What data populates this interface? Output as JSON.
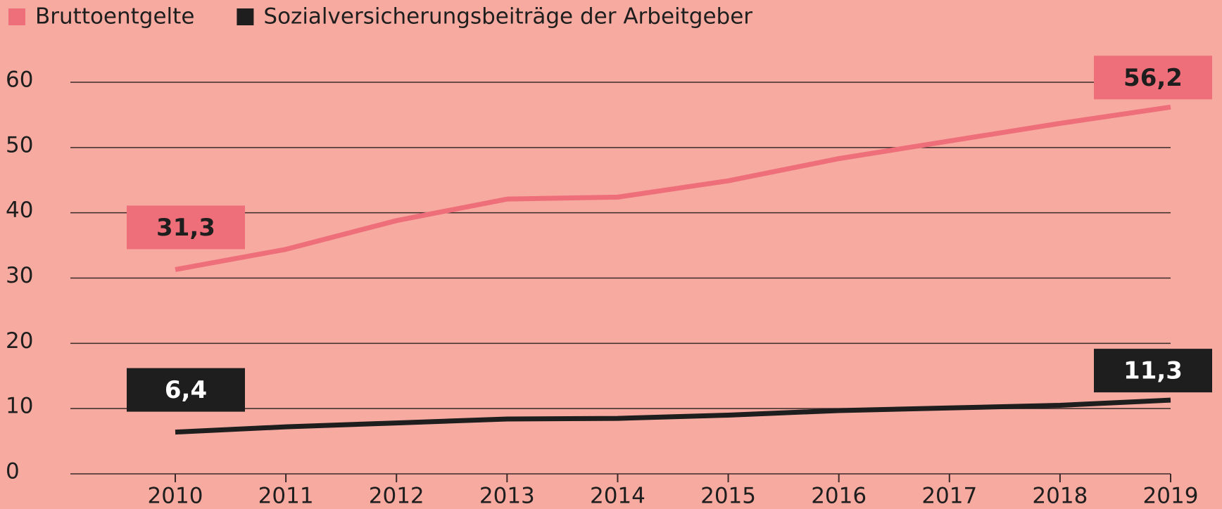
{
  "chart_data": {
    "type": "line",
    "x": [
      2010,
      2011,
      2012,
      2013,
      2014,
      2015,
      2016,
      2017,
      2018,
      2019
    ],
    "series": [
      {
        "name": "Bruttoentgelte",
        "color": "#ee6f79",
        "values": [
          31.3,
          34.4,
          38.8,
          42.1,
          42.4,
          44.9,
          48.3,
          51.0,
          53.7,
          56.2
        ],
        "value_labels": [
          "31,3",
          null,
          null,
          null,
          null,
          null,
          null,
          null,
          null,
          "56,2"
        ]
      },
      {
        "name": "Sozialversicherungsbeiträge der Arbeitgeber",
        "color": "#1e1e1e",
        "values": [
          6.4,
          7.2,
          7.8,
          8.4,
          8.5,
          9.0,
          9.7,
          10.1,
          10.5,
          11.3
        ],
        "value_labels": [
          "6,4",
          null,
          null,
          null,
          null,
          null,
          null,
          null,
          null,
          "11,3"
        ]
      }
    ],
    "xlim": [
      2010,
      2019
    ],
    "xticks": [
      2010,
      2011,
      2012,
      2013,
      2014,
      2015,
      2016,
      2017,
      2018,
      2019
    ],
    "ylim": [
      0,
      60
    ],
    "yticks": [
      0,
      10,
      20,
      30,
      40,
      50,
      60
    ],
    "grid": true
  }
}
